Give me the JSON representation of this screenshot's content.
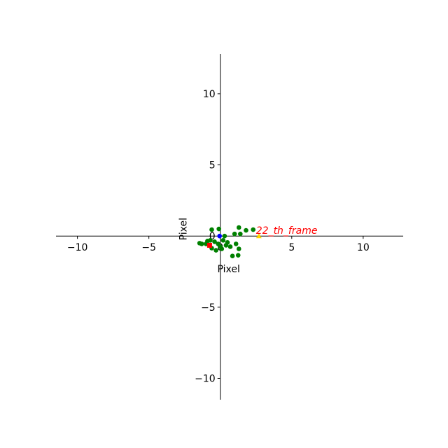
{
  "chart_data": {
    "type": "scatter",
    "title": "",
    "xlabel": "Pixel",
    "ylabel": "Pixel",
    "xlim": [
      -11.5,
      12.8
    ],
    "ylim": [
      -11.5,
      12.8
    ],
    "xticks": [
      -10,
      -5,
      0,
      5,
      10
    ],
    "yticks": [
      -10,
      -5,
      0,
      5,
      10
    ],
    "xtick_labels": [
      "−10",
      "−5",
      "0",
      "5",
      "10"
    ],
    "ytick_labels": [
      "−10",
      "−5",
      "0",
      "5",
      "10"
    ],
    "grid": false,
    "spines": "centered at origin",
    "series": [
      {
        "color": "#008000",
        "marker": "circle",
        "points": [
          [
            -0.6,
            0.45
          ],
          [
            -0.1,
            0.5
          ],
          [
            1.3,
            0.6
          ],
          [
            1.8,
            0.4
          ],
          [
            2.3,
            0.45
          ],
          [
            1.0,
            0.15
          ],
          [
            1.4,
            0.15
          ],
          [
            0.3,
            0.0
          ],
          [
            -1.3,
            -0.55
          ],
          [
            -1.0,
            -0.55
          ],
          [
            -0.7,
            -0.3
          ],
          [
            -0.4,
            -0.4
          ],
          [
            -0.15,
            -0.55
          ],
          [
            0.2,
            -0.3
          ],
          [
            0.5,
            -0.45
          ],
          [
            0.7,
            -0.75
          ],
          [
            1.1,
            -0.55
          ],
          [
            1.3,
            -0.9
          ],
          [
            -0.3,
            -1.0
          ],
          [
            0.1,
            -0.9
          ],
          [
            0.4,
            -0.65
          ],
          [
            0.85,
            -1.4
          ],
          [
            -0.6,
            -0.85
          ],
          [
            1.25,
            -1.35
          ],
          [
            -1.45,
            -0.5
          ],
          [
            0.0,
            -0.75
          ],
          [
            -0.9,
            -0.35
          ]
        ]
      },
      {
        "color": "#ff0000",
        "marker": "square",
        "points": [
          [
            -0.75,
            -0.65
          ]
        ]
      },
      {
        "color": "#0000ff",
        "marker": "circle",
        "points": [
          [
            -0.05,
            0.0
          ]
        ]
      },
      {
        "color": "#ffd700",
        "marker": "triangle",
        "points": [
          [
            2.7,
            0.0
          ]
        ]
      }
    ],
    "annotations": [
      {
        "text": "22_th_frame",
        "x": 2.5,
        "y": 0.15,
        "color": "#ff0000"
      }
    ]
  }
}
